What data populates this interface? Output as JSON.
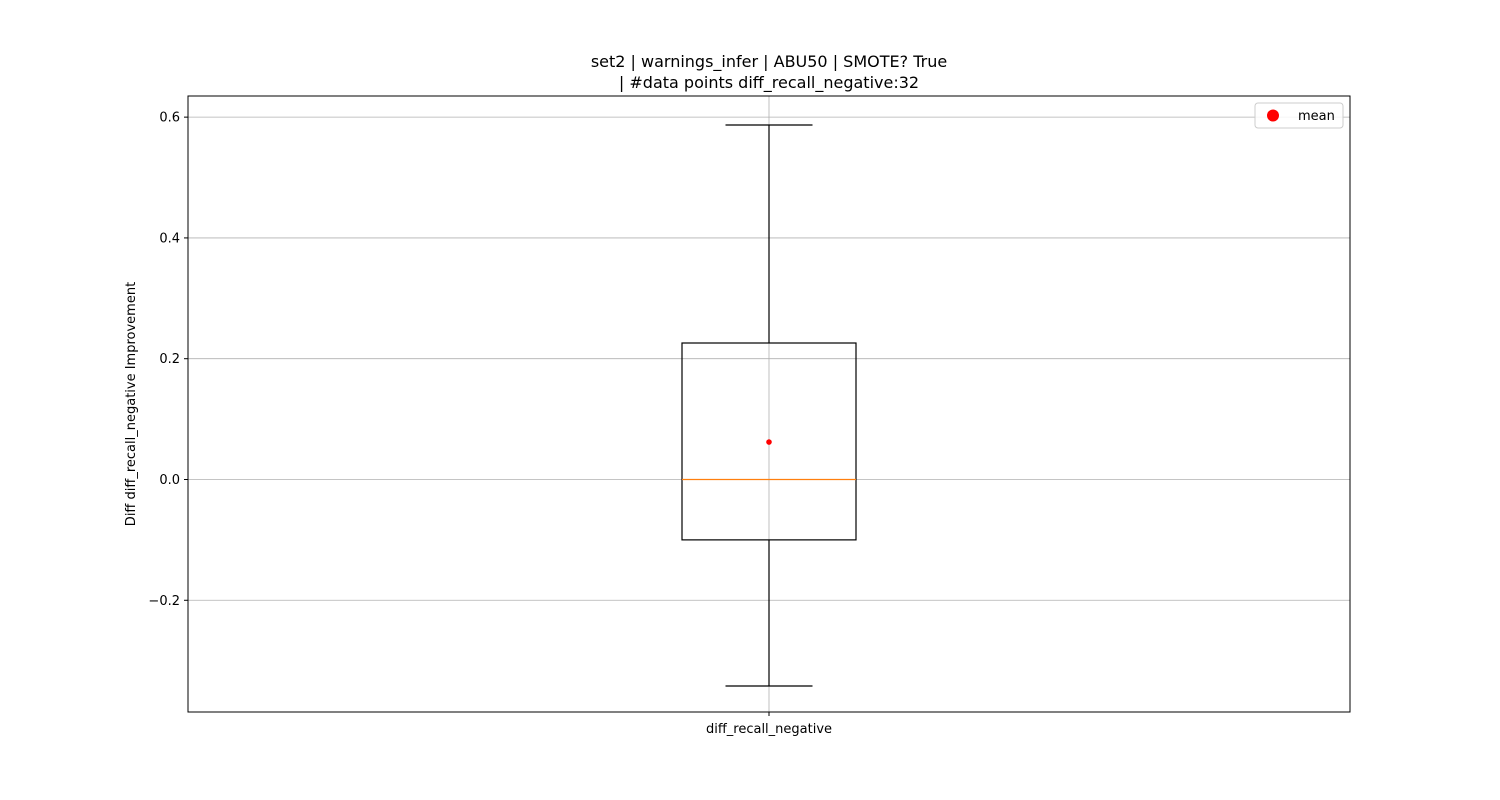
{
  "chart_data": {
    "type": "box",
    "title_line1": "set2 | warnings_infer | ABU50 | SMOTE? True",
    "title_line2": "| #data points diff_recall_negative:32",
    "xlabel": "",
    "ylabel": "Diff diff_recall_negative Improvement",
    "categories": [
      "diff_recall_negative"
    ],
    "ylim": [
      -0.385,
      0.635
    ],
    "yticks": [
      -0.2,
      0.0,
      0.2,
      0.4,
      0.6
    ],
    "ytick_labels": [
      "−0.2",
      "0.0",
      "0.2",
      "0.4",
      "0.6"
    ],
    "grid": true,
    "legend": {
      "position": "top-right",
      "entries": [
        "mean"
      ]
    },
    "boxes": [
      {
        "name": "diff_recall_negative",
        "whisker_low": -0.342,
        "q1": -0.1,
        "median": 0.0,
        "q3": 0.226,
        "whisker_high": 0.587,
        "mean": 0.062
      }
    ],
    "colors": {
      "box": "#000000",
      "median": "#ff7f0e",
      "mean": "#ff0000",
      "grid": "#b0b0b0"
    }
  }
}
